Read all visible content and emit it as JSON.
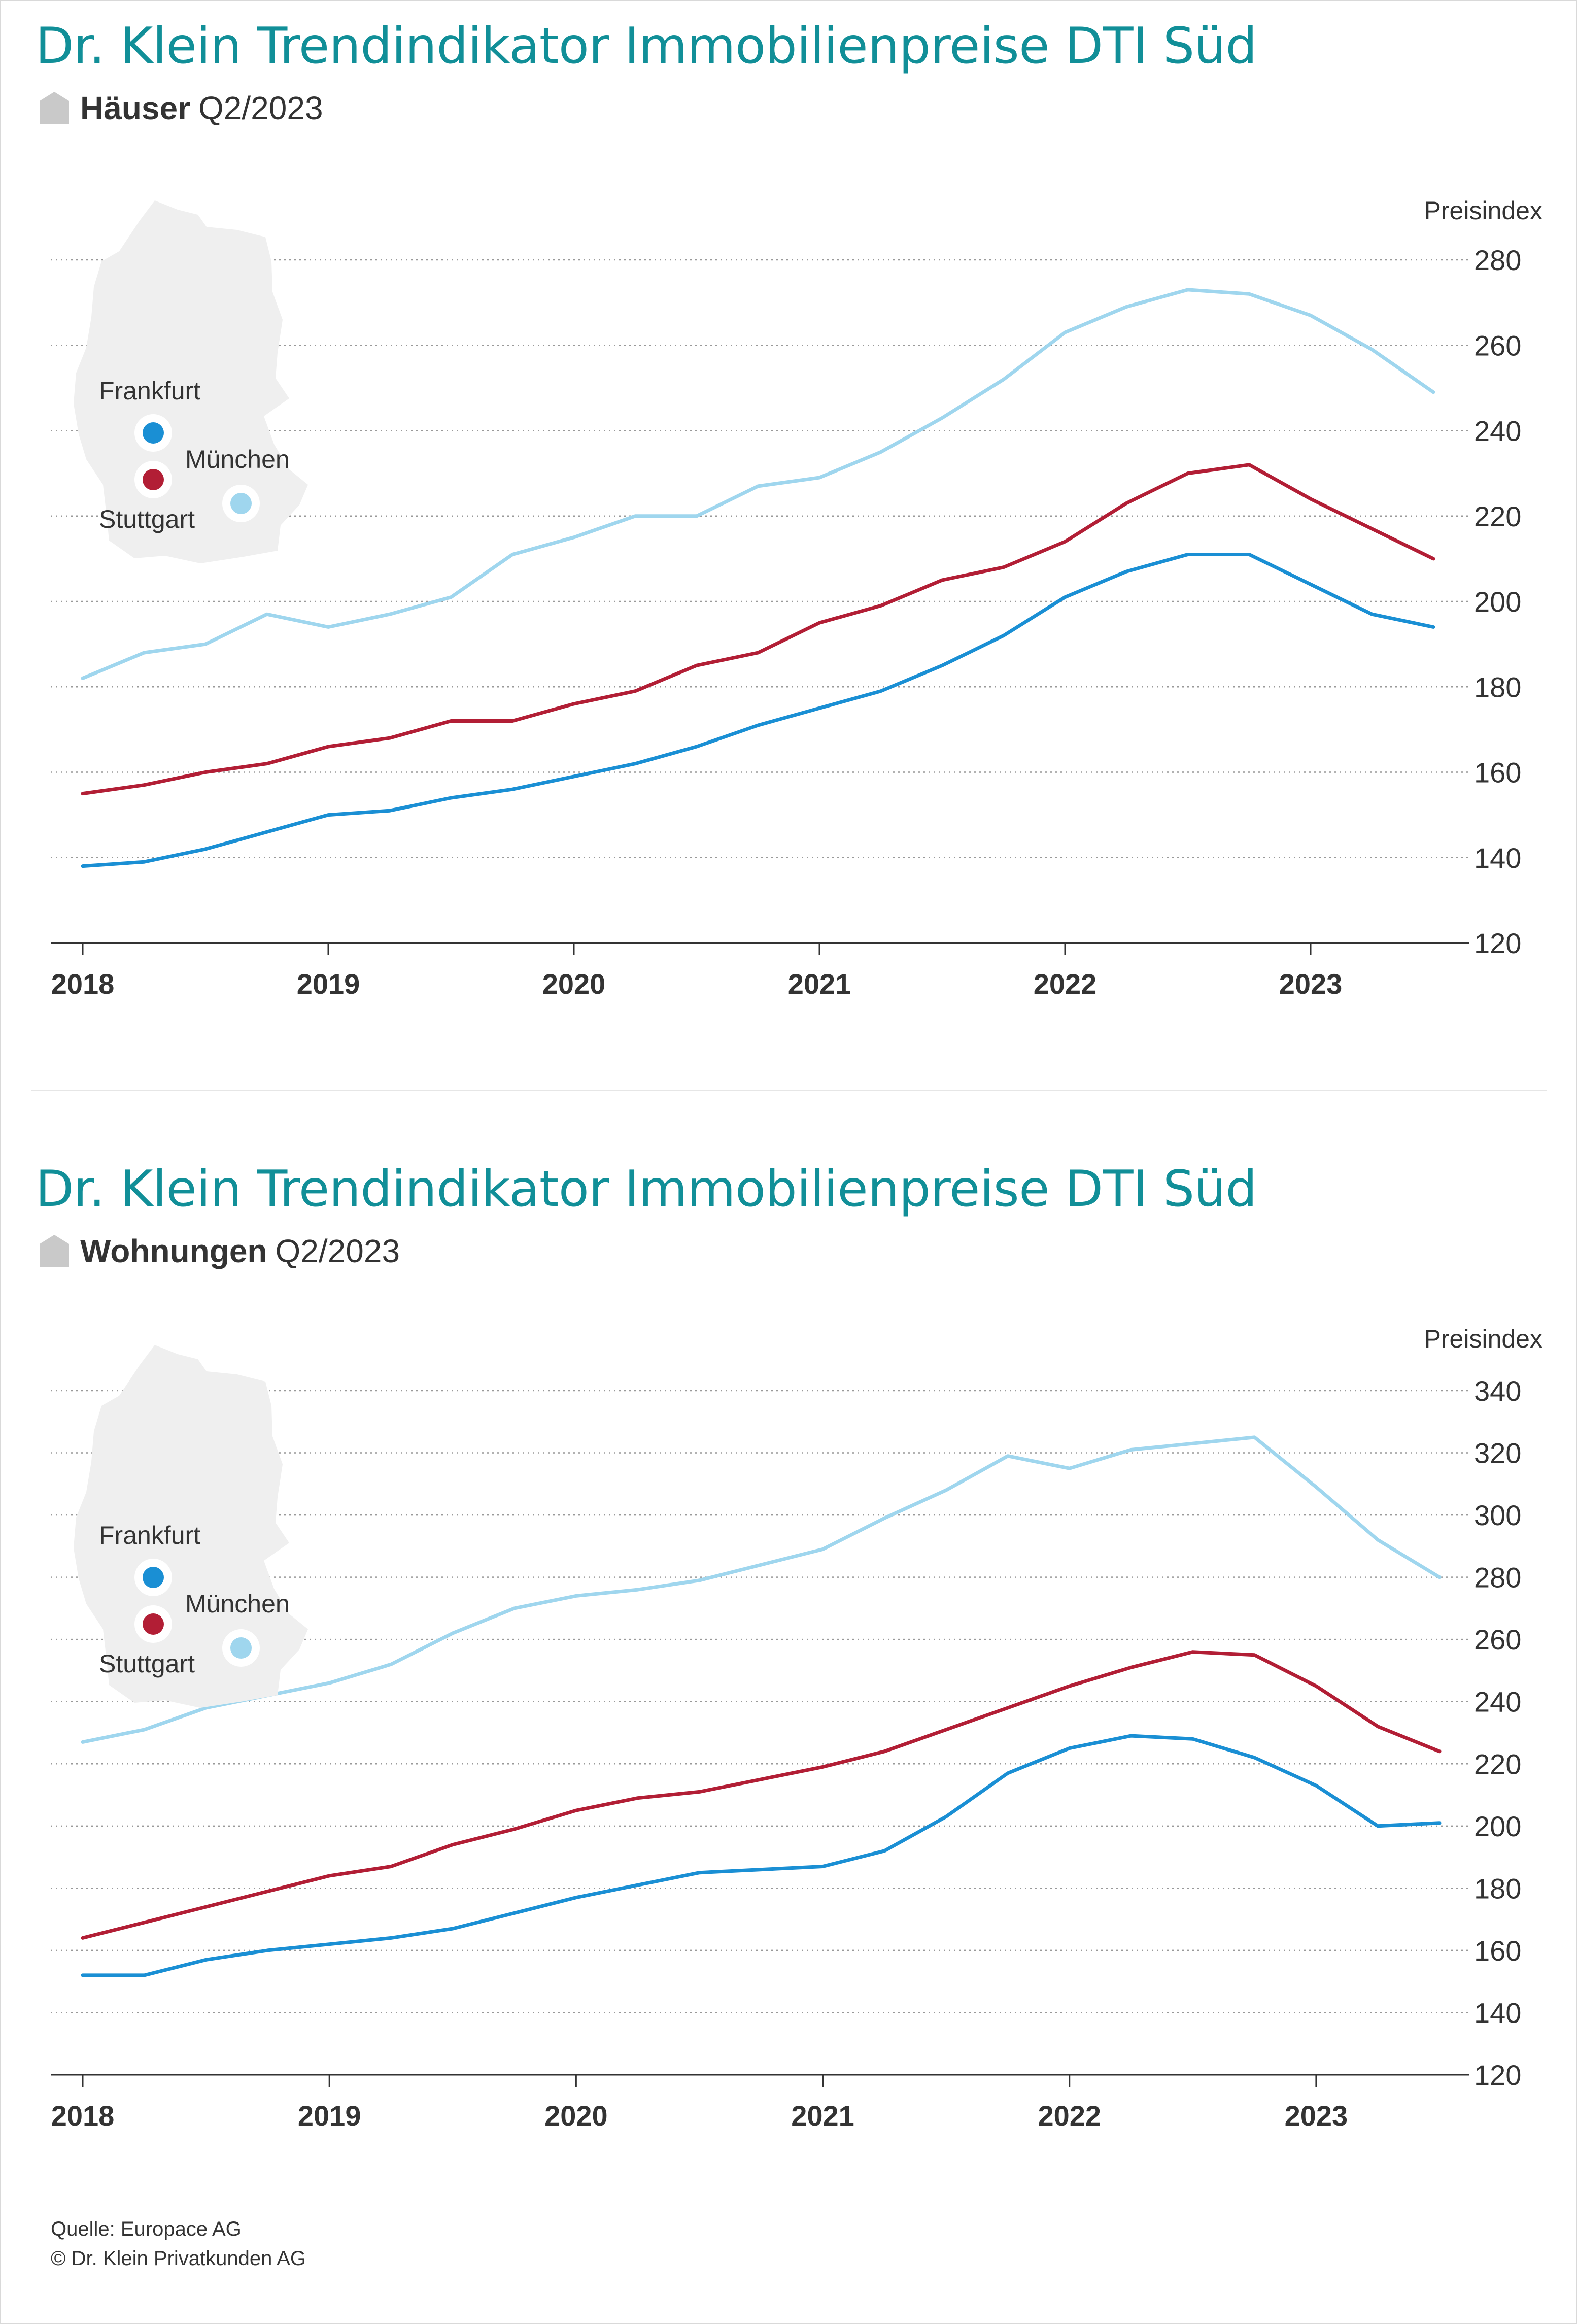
{
  "charts": [
    {
      "title": "Dr. Klein Trendindikator Immobilienpreise DTI Süd",
      "category": "Häuser",
      "period": "Q2/2023"
    },
    {
      "title": "Dr. Klein Trendindikator Immobilienpreise DTI Süd",
      "category": "Wohnungen",
      "period": "Q2/2023"
    }
  ],
  "source": {
    "line1": "Quelle: Europace AG",
    "line2": "© Dr. Klein Privatkunden AG"
  },
  "colors": {
    "title": "#118f98",
    "frankfurt": "#1a8fd4",
    "muenchen": "#9fd6ee",
    "stuttgart": "#b21e35",
    "map": "#efefef",
    "grid": "#999999"
  },
  "chart_data": [
    {
      "type": "line",
      "ylabel": "Preisindex",
      "ylim": [
        120,
        280
      ],
      "yticks": [
        120,
        140,
        160,
        180,
        200,
        220,
        240,
        260,
        280
      ],
      "xlim": [
        2018.0,
        2023.5
      ],
      "xticks": [
        "2018",
        "2019",
        "2020",
        "2021",
        "2022",
        "2023"
      ],
      "grid": true,
      "legend": "map-inset-top-left",
      "x": [
        2018.0,
        2018.25,
        2018.5,
        2018.75,
        2019.0,
        2019.25,
        2019.5,
        2019.75,
        2020.0,
        2020.25,
        2020.5,
        2020.75,
        2021.0,
        2021.25,
        2021.5,
        2021.75,
        2022.0,
        2022.25,
        2022.5,
        2022.75,
        2023.0,
        2023.25,
        2023.5
      ],
      "series": [
        {
          "name": "München",
          "color_key": "muenchen",
          "values": [
            182,
            188,
            190,
            197,
            194,
            197,
            201,
            211,
            215,
            220,
            220,
            227,
            229,
            235,
            243,
            252,
            263,
            269,
            273,
            272,
            267,
            259,
            249
          ]
        },
        {
          "name": "Stuttgart",
          "color_key": "stuttgart",
          "values": [
            155,
            157,
            160,
            162,
            166,
            168,
            172,
            172,
            176,
            179,
            185,
            188,
            195,
            199,
            205,
            208,
            214,
            223,
            230,
            232,
            224,
            217,
            210
          ]
        },
        {
          "name": "Frankfurt",
          "color_key": "frankfurt",
          "values": [
            138,
            139,
            142,
            146,
            150,
            151,
            154,
            156,
            159,
            162,
            166,
            171,
            175,
            179,
            185,
            192,
            201,
            207,
            211,
            211,
            204,
            197,
            194
          ]
        }
      ]
    },
    {
      "type": "line",
      "ylabel": "Preisindex",
      "ylim": [
        120,
        340
      ],
      "yticks": [
        120,
        140,
        160,
        180,
        200,
        220,
        240,
        260,
        280,
        300,
        320,
        340
      ],
      "xlim": [
        2018.0,
        2023.5
      ],
      "xticks": [
        "2018",
        "2019",
        "2020",
        "2021",
        "2022",
        "2023"
      ],
      "grid": true,
      "legend": "map-inset-top-left",
      "x": [
        2018.0,
        2018.25,
        2018.5,
        2018.75,
        2019.0,
        2019.25,
        2019.5,
        2019.75,
        2020.0,
        2020.25,
        2020.5,
        2020.75,
        2021.0,
        2021.25,
        2021.5,
        2021.75,
        2022.0,
        2022.25,
        2022.5,
        2022.75,
        2023.0,
        2023.25,
        2023.5
      ],
      "series": [
        {
          "name": "München",
          "color_key": "muenchen",
          "values": [
            227,
            231,
            238,
            242,
            246,
            252,
            262,
            270,
            274,
            276,
            279,
            284,
            289,
            299,
            308,
            319,
            315,
            321,
            323,
            325,
            309,
            292,
            280
          ]
        },
        {
          "name": "Stuttgart",
          "color_key": "stuttgart",
          "values": [
            164,
            169,
            174,
            179,
            184,
            187,
            194,
            199,
            205,
            209,
            211,
            215,
            219,
            224,
            231,
            238,
            245,
            251,
            256,
            255,
            245,
            232,
            224
          ]
        },
        {
          "name": "Frankfurt",
          "color_key": "frankfurt",
          "values": [
            152,
            152,
            157,
            160,
            162,
            164,
            167,
            172,
            177,
            181,
            185,
            186,
            187,
            192,
            203,
            217,
            225,
            229,
            228,
            222,
            213,
            200,
            201
          ]
        }
      ]
    }
  ]
}
